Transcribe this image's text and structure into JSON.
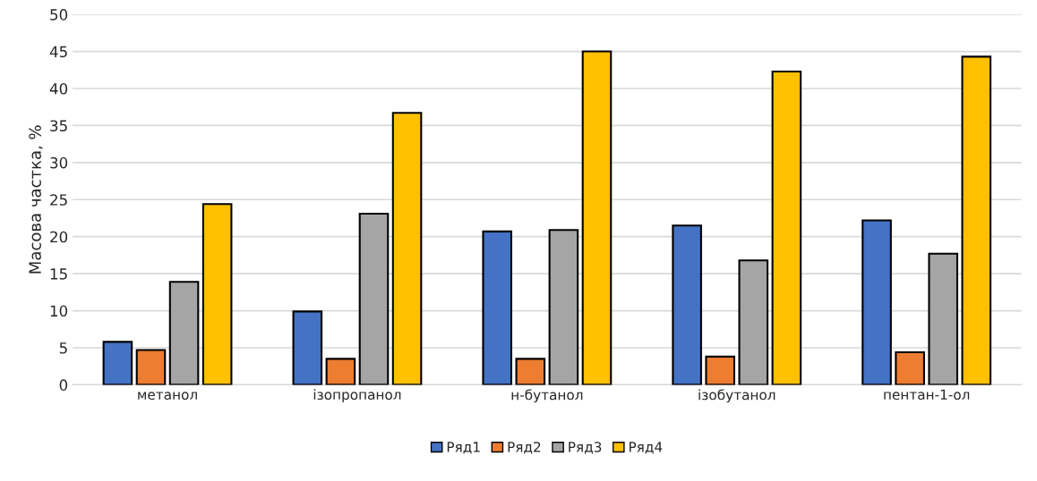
{
  "chart_data": {
    "type": "bar",
    "ylabel": "Масова частка, %",
    "categories": [
      "метанол",
      "ізопропанол",
      "н-бутанол",
      "ізобутанол",
      "пентан-1-ол"
    ],
    "series": [
      {
        "name": "Ряд1",
        "color": "#4472c4",
        "values": [
          5.8,
          9.9,
          20.7,
          21.5,
          22.2
        ]
      },
      {
        "name": "Ряд2",
        "color": "#ed7d31",
        "values": [
          4.7,
          3.5,
          3.5,
          3.8,
          4.4
        ]
      },
      {
        "name": "Ряд3",
        "color": "#a5a5a5",
        "values": [
          13.9,
          23.1,
          20.9,
          16.8,
          17.7
        ]
      },
      {
        "name": "Ряд4",
        "color": "#ffc000",
        "values": [
          24.4,
          36.7,
          45.0,
          42.3,
          44.3
        ]
      }
    ],
    "ylim": [
      0,
      50
    ],
    "yticks": [
      0,
      5,
      10,
      15,
      20,
      25,
      30,
      35,
      40,
      45,
      50
    ],
    "grid": "y",
    "legend": "bottom"
  }
}
